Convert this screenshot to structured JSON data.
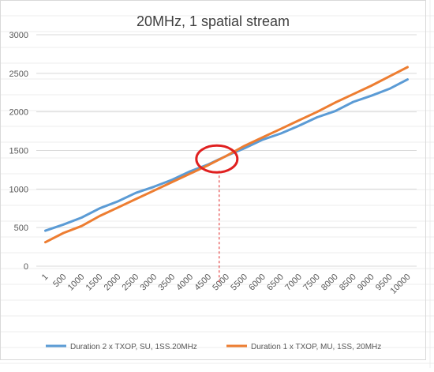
{
  "chart_data": {
    "type": "line",
    "title": "20MHz, 1 spatial stream",
    "xlabel": "",
    "ylabel": "",
    "x": [
      "1",
      "500",
      "1000",
      "1500",
      "2000",
      "2500",
      "3000",
      "3500",
      "4000",
      "4500",
      "5000",
      "5500",
      "6000",
      "6500",
      "7000",
      "7500",
      "8000",
      "8500",
      "9000",
      "9500",
      "10000"
    ],
    "ylim": [
      0,
      3000
    ],
    "yticks": [
      0,
      500,
      1000,
      1500,
      2000,
      2500,
      3000
    ],
    "grid": true,
    "legend_position": "bottom",
    "series": [
      {
        "name": "Duration 2 x TXOP, SU, 1SS.20MHz",
        "color": "#5b9bd5",
        "values": [
          460,
          540,
          630,
          750,
          840,
          950,
          1030,
          1120,
          1230,
          1320,
          1430,
          1530,
          1640,
          1720,
          1820,
          1930,
          2010,
          2130,
          2210,
          2300,
          2420
        ]
      },
      {
        "name": "Duration 1 x TXOP, MU, 1SS, 20MHz",
        "color": "#ed7d31",
        "values": [
          310,
          430,
          520,
          650,
          760,
          870,
          980,
          1090,
          1200,
          1310,
          1430,
          1560,
          1670,
          1780,
          1890,
          2000,
          2120,
          2230,
          2340,
          2460,
          2580
        ]
      }
    ],
    "annotations": {
      "circle": {
        "x_index": 9.6,
        "y": 1380,
        "color": "#e02020"
      },
      "dashed_line": {
        "x_index": 9.6,
        "color": "#e02020"
      }
    }
  }
}
